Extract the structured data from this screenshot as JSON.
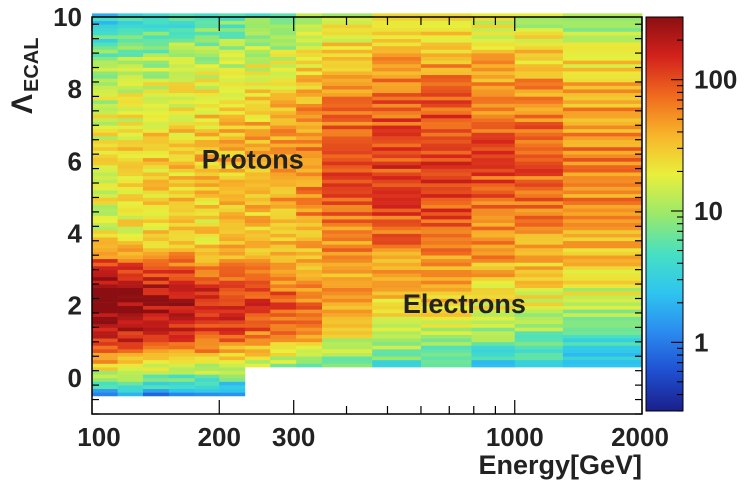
{
  "chart_data": {
    "type": "heatmap",
    "title": "",
    "xlabel": "Energy[GeV]",
    "ylabel": "Λ",
    "ylabel_subscript": "ECAL",
    "x_scale": "log",
    "xlim": [
      100,
      2000
    ],
    "ylim": [
      -1,
      10
    ],
    "x_ticks": [
      {
        "value": 100,
        "label": "100"
      },
      {
        "value": 200,
        "label": "200"
      },
      {
        "value": 300,
        "label": "300"
      },
      {
        "value": 1000,
        "label": "1000"
      },
      {
        "value": 2000,
        "label": "2000"
      }
    ],
    "y_ticks": [
      {
        "value": 0,
        "label": "0"
      },
      {
        "value": 2,
        "label": "2"
      },
      {
        "value": 4,
        "label": "4"
      },
      {
        "value": 6,
        "label": "6"
      },
      {
        "value": 8,
        "label": "8"
      },
      {
        "value": 10,
        "label": "10"
      }
    ],
    "colorbar": {
      "scale": "log",
      "range": [
        0.3,
        300
      ],
      "ticks": [
        {
          "value": 1,
          "label": "1"
        },
        {
          "value": 10,
          "label": "10"
        },
        {
          "value": 100,
          "label": "100"
        }
      ]
    },
    "x_bin_edges": [
      100,
      115,
      132,
      152,
      175,
      200,
      230,
      264,
      304,
      350,
      460,
      600,
      790,
      1000,
      1300,
      2000
    ],
    "y_bin_width": 0.1,
    "populations": [
      {
        "label": "Protons",
        "center_y": 6.0,
        "annotation_x": 240,
        "annotation_y": 5.8
      },
      {
        "label": "Electrons",
        "center_y": 2.0,
        "annotation_x": 760,
        "annotation_y": 1.8
      }
    ],
    "proton_peak_counts": [
      20,
      24,
      28,
      30,
      33,
      36,
      40,
      45,
      60,
      90,
      110,
      110,
      90,
      80,
      60
    ],
    "electron_peak_counts": [
      300,
      280,
      220,
      190,
      160,
      140,
      100,
      80,
      60,
      20,
      8,
      5,
      3,
      2,
      1.5
    ],
    "colors": {
      "axis": "#000000",
      "text": "#222222",
      "palette": [
        "#1a1f8a",
        "#1f4fd1",
        "#2b8bef",
        "#2ec5ef",
        "#47e0c2",
        "#9be96a",
        "#e9ef3c",
        "#f7b52a",
        "#f06a1e",
        "#d3221c",
        "#8b0f12"
      ]
    }
  }
}
